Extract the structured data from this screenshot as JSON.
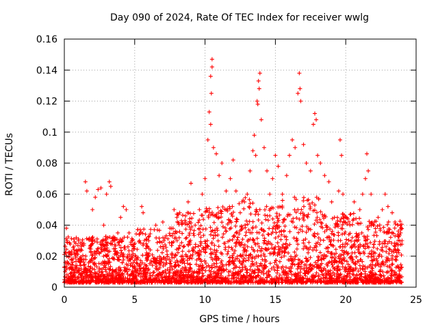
{
  "chart_data": {
    "type": "scatter",
    "title": "Day 090 of 2024, Rate Of TEC Index for receiver wwlg",
    "xlabel": "GPS time / hours",
    "ylabel": "ROTI / TECUs",
    "xlim": [
      0,
      25
    ],
    "ylim": [
      0,
      0.16
    ],
    "xticks": [
      0,
      5,
      10,
      15,
      20,
      25
    ],
    "xtick_labels": [
      "0",
      "5",
      "10",
      "15",
      "20",
      "25"
    ],
    "yticks": [
      0,
      0.02,
      0.04,
      0.06,
      0.08,
      0.1,
      0.12,
      0.14,
      0.16
    ],
    "ytick_labels": [
      "0",
      "0.02",
      "0.04",
      "0.06",
      "0.08",
      "0.1",
      "0.12",
      "0.14",
      "0.16"
    ],
    "grid": true,
    "marker": "plus",
    "series": [
      {
        "name": "ROTI",
        "color": "#ff0000",
        "points": [
          [
            0.05,
            0.01
          ],
          [
            0.1,
            0.022
          ],
          [
            0.15,
            0.038
          ],
          [
            0.2,
            0.03
          ],
          [
            0.3,
            0.015
          ],
          [
            0.5,
            0.012
          ],
          [
            0.8,
            0.02
          ],
          [
            1.0,
            0.03
          ],
          [
            1.2,
            0.018
          ],
          [
            1.5,
            0.068
          ],
          [
            1.6,
            0.062
          ],
          [
            1.8,
            0.025
          ],
          [
            2.0,
            0.05
          ],
          [
            2.2,
            0.058
          ],
          [
            2.4,
            0.063
          ],
          [
            2.6,
            0.064
          ],
          [
            2.8,
            0.04
          ],
          [
            3.0,
            0.06
          ],
          [
            3.2,
            0.068
          ],
          [
            3.3,
            0.065
          ],
          [
            3.5,
            0.03
          ],
          [
            3.8,
            0.035
          ],
          [
            4.0,
            0.045
          ],
          [
            4.2,
            0.052
          ],
          [
            4.4,
            0.05
          ],
          [
            4.6,
            0.035
          ],
          [
            4.8,
            0.02
          ],
          [
            5.0,
            0.012
          ],
          [
            5.2,
            0.018
          ],
          [
            5.5,
            0.052
          ],
          [
            5.6,
            0.048
          ],
          [
            5.8,
            0.025
          ],
          [
            6.0,
            0.03
          ],
          [
            6.5,
            0.04
          ],
          [
            7.0,
            0.042
          ],
          [
            7.5,
            0.038
          ],
          [
            7.8,
            0.05
          ],
          [
            8.0,
            0.045
          ],
          [
            8.2,
            0.048
          ],
          [
            8.6,
            0.042
          ],
          [
            8.8,
            0.055
          ],
          [
            9.0,
            0.067
          ],
          [
            9.3,
            0.04
          ],
          [
            9.6,
            0.05
          ],
          [
            9.8,
            0.06
          ],
          [
            10.0,
            0.07
          ],
          [
            10.2,
            0.095
          ],
          [
            10.3,
            0.113
          ],
          [
            10.4,
            0.105
          ],
          [
            10.5,
            0.147
          ],
          [
            10.5,
            0.142
          ],
          [
            10.4,
            0.136
          ],
          [
            10.45,
            0.125
          ],
          [
            10.6,
            0.09
          ],
          [
            10.8,
            0.086
          ],
          [
            11.0,
            0.072
          ],
          [
            11.2,
            0.08
          ],
          [
            11.5,
            0.062
          ],
          [
            11.8,
            0.07
          ],
          [
            12.0,
            0.082
          ],
          [
            12.2,
            0.062
          ],
          [
            12.5,
            0.048
          ],
          [
            12.8,
            0.055
          ],
          [
            13.0,
            0.06
          ],
          [
            13.2,
            0.075
          ],
          [
            13.4,
            0.088
          ],
          [
            13.5,
            0.098
          ],
          [
            13.6,
            0.085
          ],
          [
            13.7,
            0.12
          ],
          [
            13.8,
            0.133
          ],
          [
            13.9,
            0.138
          ],
          [
            13.85,
            0.128
          ],
          [
            13.75,
            0.118
          ],
          [
            14.0,
            0.108
          ],
          [
            14.2,
            0.09
          ],
          [
            14.4,
            0.075
          ],
          [
            14.6,
            0.06
          ],
          [
            14.8,
            0.07
          ],
          [
            15.0,
            0.085
          ],
          [
            15.2,
            0.078
          ],
          [
            15.5,
            0.06
          ],
          [
            15.8,
            0.072
          ],
          [
            16.0,
            0.085
          ],
          [
            16.2,
            0.095
          ],
          [
            16.4,
            0.09
          ],
          [
            16.6,
            0.125
          ],
          [
            16.7,
            0.138
          ],
          [
            16.75,
            0.128
          ],
          [
            16.8,
            0.12
          ],
          [
            17.0,
            0.092
          ],
          [
            17.2,
            0.08
          ],
          [
            17.5,
            0.075
          ],
          [
            17.7,
            0.105
          ],
          [
            17.8,
            0.112
          ],
          [
            17.9,
            0.108
          ],
          [
            18.0,
            0.085
          ],
          [
            18.2,
            0.08
          ],
          [
            18.5,
            0.072
          ],
          [
            18.8,
            0.068
          ],
          [
            19.0,
            0.055
          ],
          [
            19.2,
            0.045
          ],
          [
            19.5,
            0.062
          ],
          [
            19.6,
            0.095
          ],
          [
            19.7,
            0.085
          ],
          [
            19.8,
            0.06
          ],
          [
            20.0,
            0.045
          ],
          [
            20.3,
            0.04
          ],
          [
            20.6,
            0.055
          ],
          [
            21.0,
            0.05
          ],
          [
            21.2,
            0.06
          ],
          [
            21.4,
            0.07
          ],
          [
            21.5,
            0.086
          ],
          [
            21.6,
            0.075
          ],
          [
            21.8,
            0.06
          ],
          [
            22.0,
            0.04
          ],
          [
            22.3,
            0.045
          ],
          [
            22.6,
            0.05
          ],
          [
            22.8,
            0.06
          ],
          [
            23.0,
            0.052
          ],
          [
            23.3,
            0.048
          ],
          [
            23.5,
            0.042
          ],
          [
            23.7,
            0.04
          ],
          [
            23.9,
            0.035
          ],
          [
            24.0,
            0.03
          ]
        ]
      }
    ]
  }
}
